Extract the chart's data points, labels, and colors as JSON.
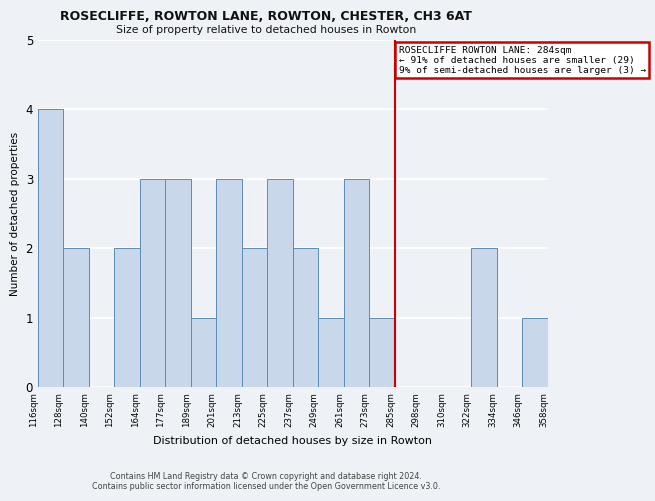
{
  "title": "ROSECLIFFE, ROWTON LANE, ROWTON, CHESTER, CH3 6AT",
  "subtitle": "Size of property relative to detached houses in Rowton",
  "xlabel": "Distribution of detached houses by size in Rowton",
  "ylabel": "Number of detached properties",
  "bar_color": "#c8d8ea",
  "bar_edge_color": "#5b8db8",
  "background_color": "#eef2f7",
  "grid_color": "#ffffff",
  "tick_labels": [
    "116sqm",
    "128sqm",
    "140sqm",
    "152sqm",
    "164sqm",
    "177sqm",
    "189sqm",
    "201sqm",
    "213sqm",
    "225sqm",
    "237sqm",
    "249sqm",
    "261sqm",
    "273sqm",
    "285sqm",
    "298sqm",
    "310sqm",
    "322sqm",
    "334sqm",
    "346sqm",
    "358sqm"
  ],
  "values": [
    4,
    2,
    0,
    2,
    3,
    3,
    1,
    3,
    2,
    3,
    2,
    1,
    3,
    1,
    0,
    0,
    0,
    2,
    0,
    1
  ],
  "vline_pos": 14,
  "vline_color": "#cc0000",
  "annotation_text": "ROSECLIFFE ROWTON LANE: 284sqm\n← 91% of detached houses are smaller (29)\n9% of semi-detached houses are larger (3) →",
  "annotation_box_color": "#ffffff",
  "annotation_box_edge_color": "#cc0000",
  "ylim": [
    0,
    5
  ],
  "yticks": [
    0,
    1,
    2,
    3,
    4,
    5
  ],
  "footer_line1": "Contains HM Land Registry data © Crown copyright and database right 2024.",
  "footer_line2": "Contains public sector information licensed under the Open Government Licence v3.0."
}
